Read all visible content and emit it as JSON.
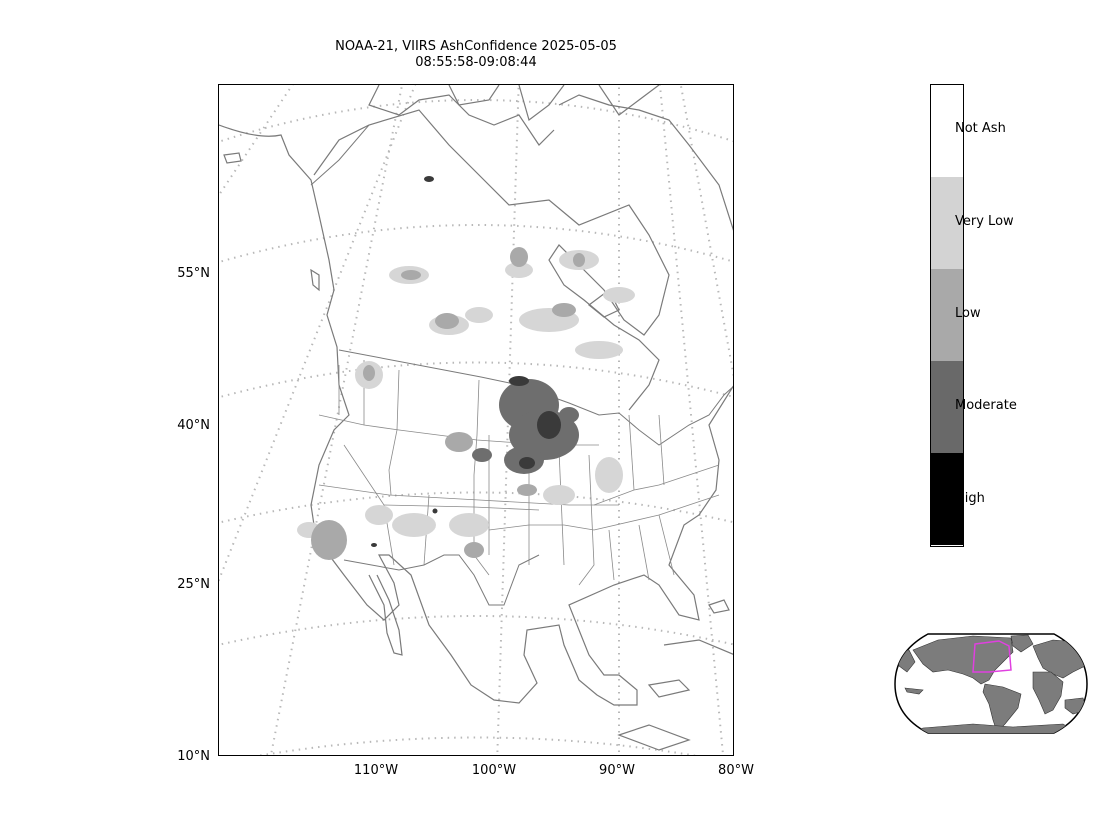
{
  "title": {
    "line1": "NOAA-21, VIIRS AshConfidence 2025-05-05",
    "line2": "08:55:58-09:08:44"
  },
  "map": {
    "projection": "lambert-conformal",
    "gridlines": "dotted-gray",
    "lat_labels": [
      "55°N",
      "40°N",
      "25°N",
      "10°N"
    ],
    "lon_labels": [
      "110°W",
      "100°W",
      "90°W",
      "80°W"
    ]
  },
  "colorbar": {
    "categories": [
      {
        "label": "Not Ash",
        "color": "#ffffff"
      },
      {
        "label": "Very Low",
        "color": "#d3d3d3"
      },
      {
        "label": "Low",
        "color": "#a9a9a9"
      },
      {
        "label": "Moderate",
        "color": "#696969"
      },
      {
        "label": "High",
        "color": "#000000"
      }
    ]
  },
  "inset": {
    "type": "world-locator",
    "land_color": "#808080",
    "highlight_color": "#e040e0"
  }
}
